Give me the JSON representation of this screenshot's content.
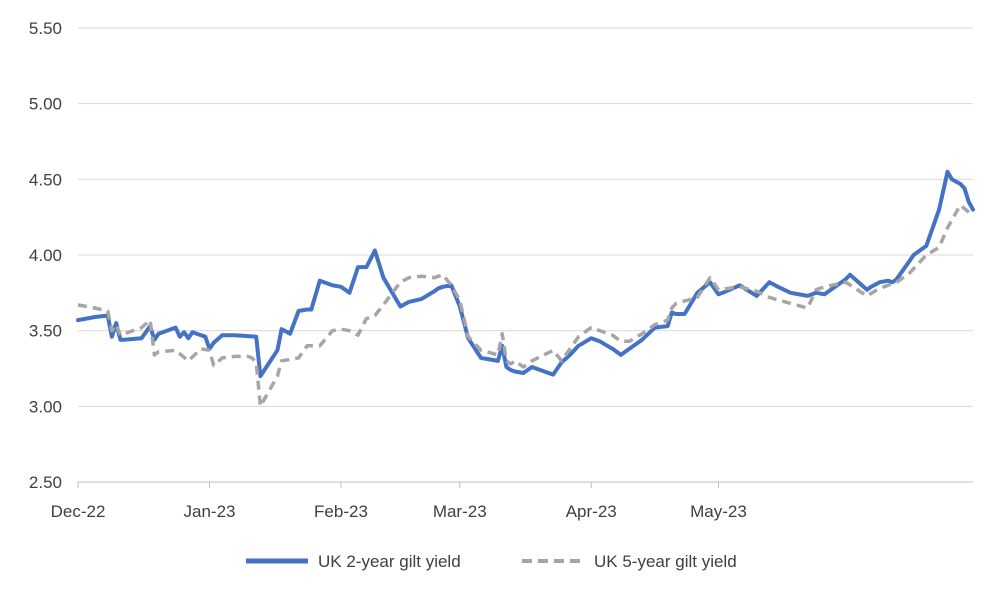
{
  "chart_data": {
    "type": "line",
    "title": "",
    "xlabel": "",
    "ylabel": "",
    "ylim": [
      2.5,
      5.5
    ],
    "y_ticks": [
      "2.50",
      "3.00",
      "3.50",
      "4.00",
      "4.50",
      "5.00",
      "5.50"
    ],
    "x_ticks": [
      "Dec-22",
      "Jan-23",
      "Feb-23",
      "Mar-23",
      "Apr-23",
      "May-23"
    ],
    "x_unit": "days since 1 Dec 2022",
    "grid": true,
    "legend_position": "bottom",
    "series": [
      {
        "name": "UK 2-year gilt yield",
        "color": "#4472c4",
        "style": "solid",
        "x": [
          0,
          4,
          7,
          8,
          9,
          10,
          11,
          15,
          17,
          18,
          19,
          23,
          24,
          25,
          26,
          27,
          29,
          30,
          31,
          32,
          34,
          37,
          42,
          43,
          47,
          48,
          50,
          52,
          54,
          55,
          57,
          60,
          62,
          64,
          66,
          68,
          70,
          72,
          76,
          78,
          81,
          84,
          85,
          86,
          88,
          90,
          92,
          95,
          99,
          100,
          101,
          102,
          103,
          105,
          107,
          112,
          114,
          116,
          118,
          121,
          123,
          126,
          128,
          130,
          133,
          136,
          139,
          140,
          141,
          143,
          146,
          149,
          151,
          152,
          156,
          160,
          163,
          165,
          168,
          172,
          174,
          176,
          181,
          182,
          186,
          187,
          189,
          191,
          192,
          193,
          196,
          197,
          200,
          203,
          205,
          206,
          208,
          209,
          210,
          211
        ],
        "y": [
          3.57,
          3.59,
          3.6,
          3.46,
          3.55,
          3.44,
          3.44,
          3.45,
          3.53,
          3.44,
          3.48,
          3.52,
          3.46,
          3.49,
          3.45,
          3.49,
          3.47,
          3.46,
          3.38,
          3.42,
          3.47,
          3.47,
          3.46,
          3.2,
          3.37,
          3.51,
          3.48,
          3.63,
          3.64,
          3.64,
          3.83,
          3.8,
          3.79,
          3.75,
          3.92,
          3.92,
          4.03,
          3.85,
          3.66,
          3.69,
          3.71,
          3.76,
          3.78,
          3.79,
          3.8,
          3.66,
          3.45,
          3.32,
          3.3,
          3.4,
          3.26,
          3.24,
          3.23,
          3.22,
          3.26,
          3.21,
          3.29,
          3.34,
          3.4,
          3.45,
          3.43,
          3.38,
          3.34,
          3.38,
          3.44,
          3.52,
          3.53,
          3.62,
          3.61,
          3.61,
          3.75,
          3.82,
          3.74,
          3.75,
          3.8,
          3.73,
          3.82,
          3.79,
          3.75,
          3.73,
          3.75,
          3.74,
          3.84,
          3.87,
          3.77,
          3.79,
          3.82,
          3.83,
          3.82,
          3.84,
          3.96,
          4.0,
          4.06,
          4.3,
          4.55,
          4.5,
          4.47,
          4.44,
          4.35,
          4.3
        ]
      },
      {
        "name": "UK 5-year gilt yield",
        "color": "#a6a6a6",
        "style": "dashed",
        "x": [
          0,
          4,
          7,
          8,
          9,
          10,
          15,
          17,
          18,
          19,
          23,
          26,
          29,
          31,
          32,
          34,
          37,
          40,
          41,
          42,
          43,
          47,
          48,
          52,
          54,
          57,
          60,
          62,
          64,
          66,
          68,
          70,
          72,
          76,
          78,
          81,
          84,
          85,
          86,
          88,
          90,
          92,
          95,
          99,
          100,
          101,
          102,
          103,
          105,
          107,
          112,
          114,
          118,
          121,
          126,
          128,
          130,
          133,
          136,
          139,
          140,
          141,
          146,
          149,
          151,
          156,
          160,
          163,
          168,
          172,
          174,
          176,
          181,
          186,
          189,
          193,
          196,
          200,
          203,
          205,
          208,
          211
        ],
        "y": [
          3.67,
          3.65,
          3.63,
          3.5,
          3.54,
          3.47,
          3.52,
          3.57,
          3.34,
          3.36,
          3.37,
          3.3,
          3.38,
          3.37,
          3.27,
          3.32,
          3.33,
          3.33,
          3.32,
          3.29,
          3.0,
          3.2,
          3.3,
          3.32,
          3.4,
          3.4,
          3.5,
          3.51,
          3.5,
          3.47,
          3.58,
          3.6,
          3.67,
          3.82,
          3.85,
          3.86,
          3.85,
          3.86,
          3.87,
          3.8,
          3.7,
          3.46,
          3.37,
          3.34,
          3.48,
          3.3,
          3.28,
          3.3,
          3.26,
          3.3,
          3.37,
          3.3,
          3.46,
          3.52,
          3.47,
          3.43,
          3.43,
          3.48,
          3.54,
          3.57,
          3.65,
          3.68,
          3.72,
          3.85,
          3.77,
          3.79,
          3.76,
          3.72,
          3.68,
          3.65,
          3.77,
          3.79,
          3.82,
          3.73,
          3.78,
          3.82,
          3.88,
          4.0,
          4.05,
          4.18,
          4.33,
          4.26
        ]
      }
    ]
  },
  "legend": {
    "items": [
      {
        "label": "UK 2-year gilt yield",
        "color": "#4472c4",
        "style": "solid"
      },
      {
        "label": "UK 5-year gilt yield",
        "color": "#a6a6a6",
        "style": "dashed"
      }
    ]
  }
}
